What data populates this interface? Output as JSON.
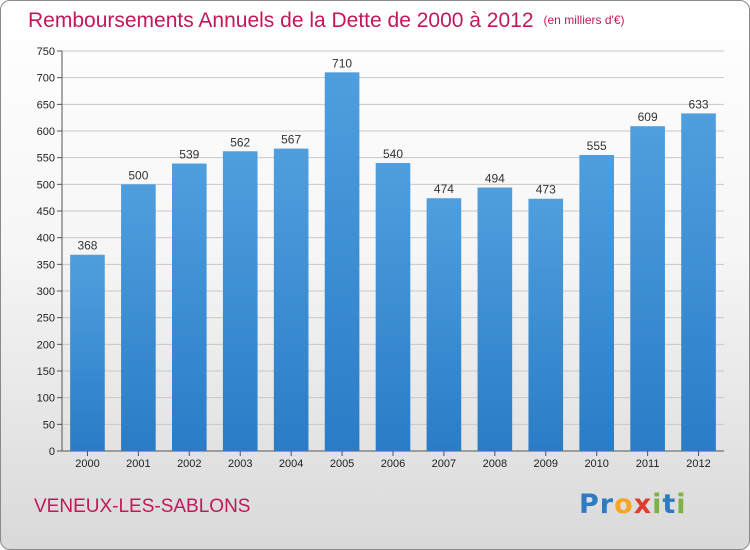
{
  "header": {
    "title": "Remboursements Annuels de la Dette de 2000 à 2012",
    "unit": "(en milliers d'€)"
  },
  "footer": {
    "commune": "VENEUX-LES-SABLONS",
    "logo_letters": [
      {
        "ch": "P",
        "color": "#2e7bc4"
      },
      {
        "ch": "r",
        "color": "#2e7bc4"
      },
      {
        "ch": "o",
        "color": "#f5a623"
      },
      {
        "ch": "x",
        "color": "#e03c31"
      },
      {
        "ch": "i",
        "color": "#7cb342"
      },
      {
        "ch": "t",
        "color": "#2e7bc4"
      },
      {
        "ch": "i",
        "color": "#7cb342"
      }
    ]
  },
  "chart_data": {
    "type": "bar",
    "title": "Remboursements Annuels de la Dette de 2000 à 2012",
    "ylabel": "",
    "xlabel": "",
    "categories": [
      "2000",
      "2001",
      "2002",
      "2003",
      "2004",
      "2005",
      "2006",
      "2007",
      "2008",
      "2009",
      "2010",
      "2011",
      "2012"
    ],
    "values": [
      368,
      500,
      539,
      562,
      567,
      710,
      540,
      474,
      494,
      473,
      555,
      609,
      633
    ],
    "ylim": [
      0,
      750
    ],
    "ytick_step": 50,
    "grid": true,
    "bar_color": "#4f9fdf",
    "bar_color_dark": "#2a7cc6"
  }
}
